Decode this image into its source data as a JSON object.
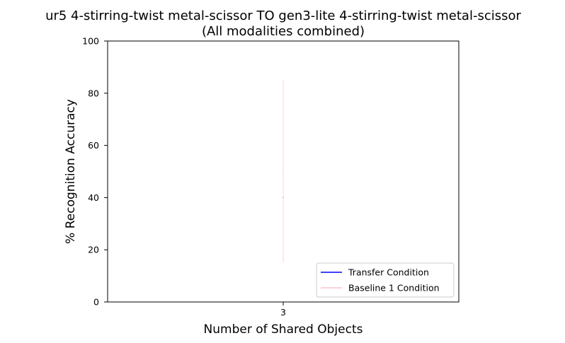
{
  "chart_data": {
    "type": "line",
    "title_line1": "ur5 4-stirring-twist metal-scissor TO gen3-lite 4-stirring-twist metal-scissor",
    "title_line2": "(All modalities combined)",
    "xlabel": "Number of Shared Objects",
    "ylabel": "% Recognition Accuracy",
    "ylim": [
      0,
      100
    ],
    "y_ticks": [
      "0",
      "20",
      "40",
      "60",
      "80",
      "100"
    ],
    "categories": [
      "3"
    ],
    "series": [
      {
        "name": "Transfer Condition",
        "color": "#0000ff",
        "values": [
          40
        ],
        "band_low": [
          40
        ],
        "band_high": [
          40
        ]
      },
      {
        "name": "Baseline 1 Condition",
        "color": "#ffc0cb",
        "values": [
          50
        ],
        "band_low": [
          15
        ],
        "band_high": [
          85
        ]
      }
    ],
    "legend_position": "lower-right",
    "grid": false
  }
}
